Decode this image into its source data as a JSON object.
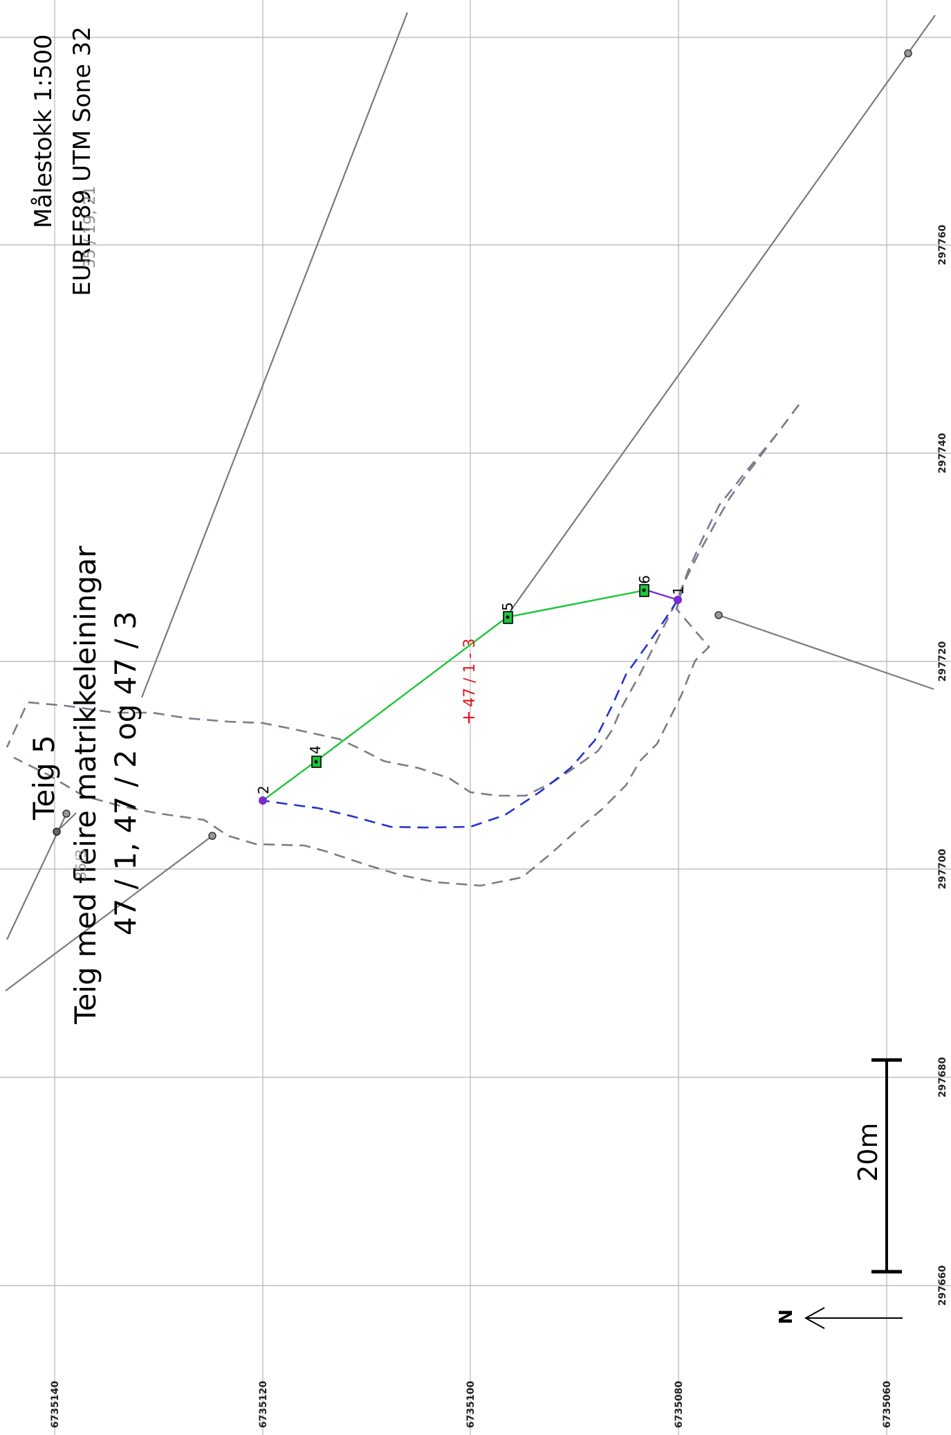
{
  "map": {
    "scale_text": "Målestokk 1:500",
    "crs_text": "EUREF89 UTM Sone 32",
    "corner_label": "35 / 19, 21",
    "teig_title": "Teig 5",
    "teig_subtitle": "Teig med fleire matrikkeleiningar",
    "teig_units": "47 / 1, 47 / 2 og 47 / 3",
    "parcel_label": "47 / 1 - 3",
    "faded_label": "35/3",
    "scale_bar_label": "20m",
    "north_label": "N",
    "easting_ticks": [
      "297760",
      "297740",
      "297720",
      "297700",
      "297680",
      "297660"
    ],
    "northing_ticks": [
      "6735140",
      "6735120",
      "6735100",
      "6735080",
      "6735060"
    ],
    "point_labels": {
      "p1": "1",
      "p2": "2",
      "p4": "4",
      "p5": "5",
      "p6": "6"
    },
    "colors": {
      "boundary_new": "#1fc43a",
      "boundary_uncertain": "#2233cc",
      "boundary_point": "#7a2ad0",
      "parcel_label": "#e8141c",
      "grid": "#b4b4b4"
    }
  }
}
